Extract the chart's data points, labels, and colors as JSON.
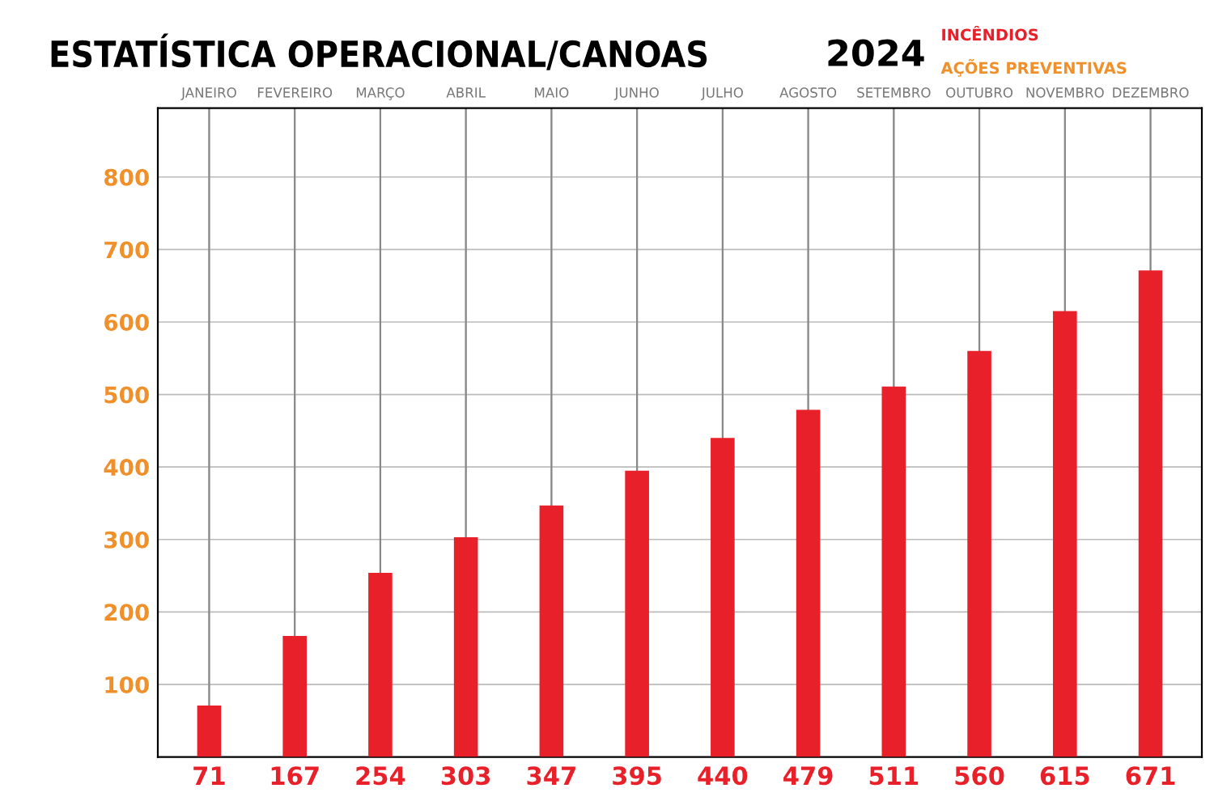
{
  "chart_data": {
    "type": "bar",
    "title": "ESTATÍSTICA OPERACIONAL/CANOAS",
    "subtitle": "2024",
    "categories": [
      "JANEIRO",
      "FEVEREIRO",
      "MARÇO",
      "ABRIL",
      "MAIO",
      "JUNHO",
      "JULHO",
      "AGOSTO",
      "SETEMBRO",
      "OUTUBRO",
      "NOVEMBRO",
      "DEZEMBRO"
    ],
    "series": [
      {
        "name": "INCÊNDIOS",
        "color": "#e8202a",
        "values": [
          71,
          167,
          254,
          303,
          347,
          395,
          440,
          479,
          511,
          560,
          615,
          671
        ]
      }
    ],
    "annotations": [
      "AÇÕES PREVENTIVAS"
    ],
    "ylim": [
      0,
      895
    ],
    "yticks": [
      100,
      200,
      300,
      400,
      500,
      600,
      700,
      800
    ],
    "data_labels": true,
    "grid": true,
    "legend": "top right"
  }
}
